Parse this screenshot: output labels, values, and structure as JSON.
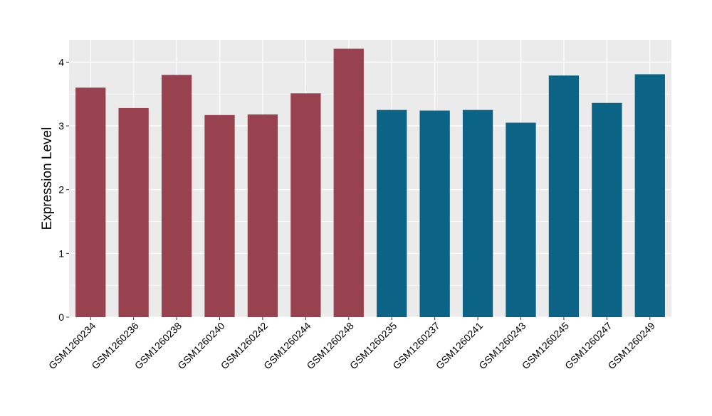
{
  "chart_data": {
    "type": "bar",
    "title": "",
    "xlabel": "",
    "ylabel": "Expression Level",
    "ylim": [
      0,
      4.35
    ],
    "yticks": [
      0,
      1,
      2,
      3,
      4
    ],
    "grid": true,
    "legend": "none",
    "categories": [
      "GSM1260234",
      "GSM1260236",
      "GSM1260238",
      "GSM1260240",
      "GSM1260242",
      "GSM1260244",
      "GSM1260248",
      "GSM1260235",
      "GSM1260237",
      "GSM1260241",
      "GSM1260243",
      "GSM1260245",
      "GSM1260247",
      "GSM1260249"
    ],
    "values": [
      3.6,
      3.28,
      3.8,
      3.17,
      3.18,
      3.51,
      4.21,
      3.25,
      3.24,
      3.25,
      3.05,
      3.79,
      3.36,
      3.81
    ],
    "groups": [
      0,
      0,
      0,
      0,
      0,
      0,
      0,
      1,
      1,
      1,
      1,
      1,
      1,
      1
    ],
    "group_colors": [
      "#99424f",
      "#0b6485"
    ]
  },
  "style": {
    "panel_background": "#ebebeb",
    "grid_color": "#ffffff",
    "axis_text_color": "#000000",
    "tick_color": "#333333"
  }
}
